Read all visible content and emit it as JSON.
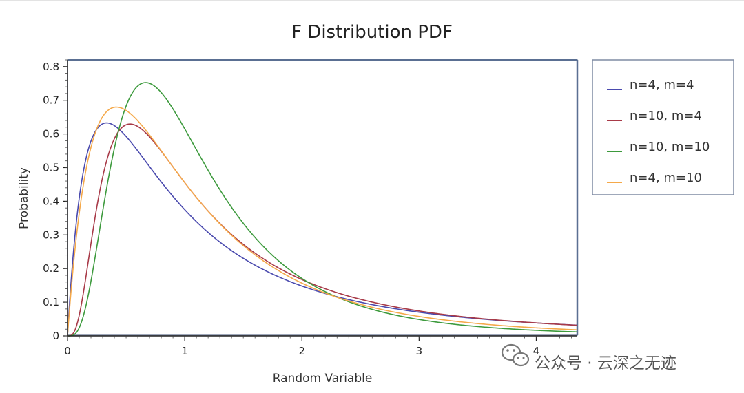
{
  "chart_data": {
    "type": "line",
    "title": "F Distribution PDF",
    "xlabel": "Random Variable",
    "ylabel": "Probability",
    "xlim": [
      0,
      4.35
    ],
    "ylim": [
      0,
      0.82
    ],
    "x_ticks": [
      0,
      1,
      2,
      3,
      4
    ],
    "x_tick_labels": [
      "0",
      "1",
      "2",
      "3",
      "4"
    ],
    "y_ticks": [
      0,
      0.1,
      0.2,
      0.3,
      0.4,
      0.5,
      0.6,
      0.7,
      0.8
    ],
    "y_tick_labels": [
      "0",
      "0.1",
      "0.2",
      "0.3",
      "0.4",
      "0.5",
      "0.6",
      "0.7",
      "0.8"
    ],
    "grid": false,
    "legend_position": "right",
    "series": [
      {
        "name": "n=4, m=4",
        "d1": 4,
        "d2": 4,
        "color": "#4a4aae"
      },
      {
        "name": "n=10, m=4",
        "d1": 10,
        "d2": 4,
        "color": "#a83a48"
      },
      {
        "name": "n=10, m=10",
        "d1": 10,
        "d2": 10,
        "color": "#3d9a3d"
      },
      {
        "name": "n=4, m=10",
        "d1": 4,
        "d2": 10,
        "color": "#f5a94a"
      }
    ]
  },
  "watermark": {
    "text": "公众号 · 云深之无迹",
    "icon": "wechat-icon"
  }
}
